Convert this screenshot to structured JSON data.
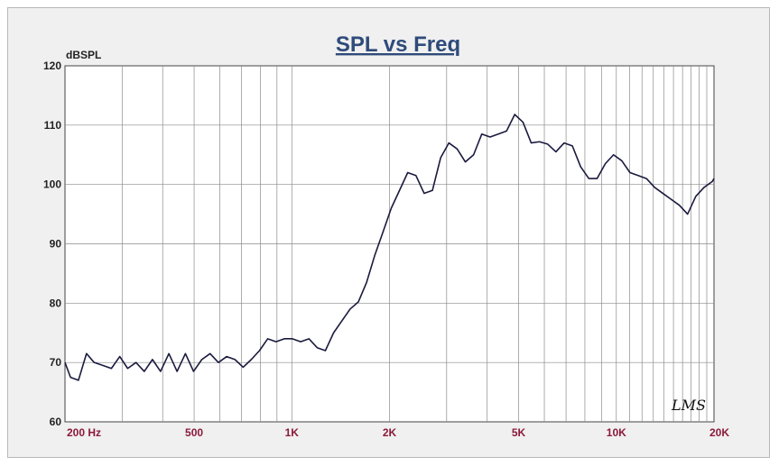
{
  "chart_data": {
    "type": "line",
    "title": "SPL vs Freq",
    "ylabel": "dBSPL",
    "xlabel": "",
    "xscale": "log",
    "xlim": [
      200,
      20000
    ],
    "ylim": [
      60,
      120
    ],
    "grid": true,
    "yticks": [
      "60",
      "70",
      "80",
      "90",
      "100",
      "110",
      "120"
    ],
    "ytick_values": [
      60,
      70,
      80,
      90,
      100,
      110,
      120
    ],
    "xticks": [
      "200 Hz",
      "500",
      "1K",
      "2K",
      "5K",
      "10K",
      "20K"
    ],
    "xtick_values": [
      200,
      500,
      1000,
      2000,
      5000,
      10000,
      20000
    ],
    "watermark": "LMS",
    "colors": {
      "line": "#1a1a3e",
      "grid": "#8a8a8a",
      "title": "#2e4b7a",
      "xtick": "#8b1a3a"
    },
    "series": [
      {
        "x": [
          200,
          208,
          220,
          233,
          246,
          262,
          278,
          295,
          312,
          331,
          351,
          372,
          394,
          418,
          443,
          470,
          498,
          528,
          560,
          594,
          630,
          668,
          708,
          750,
          795,
          843,
          894,
          948,
          1004,
          1065,
          1129,
          1197,
          1269,
          1345,
          1426,
          1512,
          1603,
          1700,
          1800,
          1910,
          2025,
          2147,
          2276,
          2413,
          2558,
          2712,
          2875,
          3048,
          3231,
          3426,
          3632,
          3850,
          4082,
          4327,
          4588,
          4864,
          5156,
          5467,
          5795,
          6144,
          6514,
          6905,
          7321,
          7761,
          8228,
          8723,
          9247,
          9803,
          10393,
          11018,
          11680,
          12382,
          13127,
          13916,
          14753,
          15640,
          16580,
          17577,
          18634,
          19755,
          20000
        ],
        "y": [
          70,
          67.5,
          67,
          71.5,
          70,
          69.5,
          69,
          71,
          69,
          70,
          68.5,
          70.5,
          68.5,
          71.5,
          68.5,
          71.5,
          68.5,
          70.5,
          71.5,
          70,
          71,
          70.5,
          69.2,
          70.5,
          72,
          74,
          73.5,
          74,
          74,
          73.5,
          74,
          72.5,
          72,
          75,
          77,
          79,
          80.2,
          83.5,
          88,
          92,
          96,
          99,
          102,
          101.5,
          98.5,
          99,
          104.5,
          107,
          106,
          103.8,
          105,
          108.5,
          108,
          108.5,
          109,
          111.8,
          110.5,
          107,
          107.2,
          106.8,
          105.5,
          107,
          106.5,
          103,
          101,
          101,
          103.5,
          105,
          104,
          102,
          101.5,
          101,
          99.5,
          98.5,
          97.5,
          96.5,
          95,
          98,
          99.5,
          100.5,
          101
        ]
      }
    ]
  }
}
